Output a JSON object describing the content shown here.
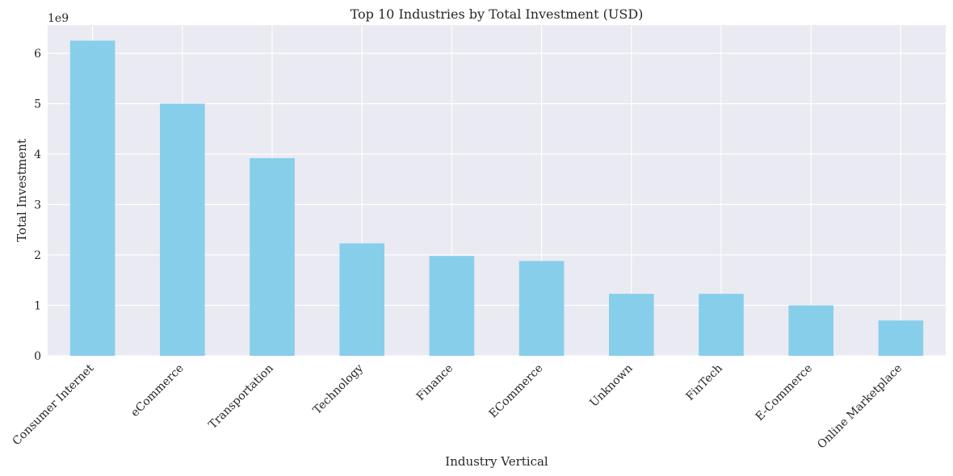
{
  "chart_data": {
    "type": "bar",
    "title": "Top 10 Industries by Total Investment (USD)",
    "xlabel": "Industry Vertical",
    "ylabel": "Total Investment",
    "y_offset_label": "1e9",
    "categories": [
      "Consumer Internet",
      "eCommerce",
      "Transportation",
      "Technology",
      "Finance",
      "ECommerce",
      "Unknown",
      "FinTech",
      "E-Commerce",
      "Online Marketplace"
    ],
    "values": [
      6250000000,
      5000000000,
      3920000000,
      2230000000,
      1980000000,
      1880000000,
      1230000000,
      1230000000,
      1000000000,
      700000000
    ],
    "y_ticks": [
      0,
      1,
      2,
      3,
      4,
      5,
      6
    ],
    "y_tick_multiplier": 1000000000,
    "ylim": [
      0,
      6560000000
    ],
    "bar_color": "#87ceeb",
    "grid": true,
    "legend": "none"
  }
}
